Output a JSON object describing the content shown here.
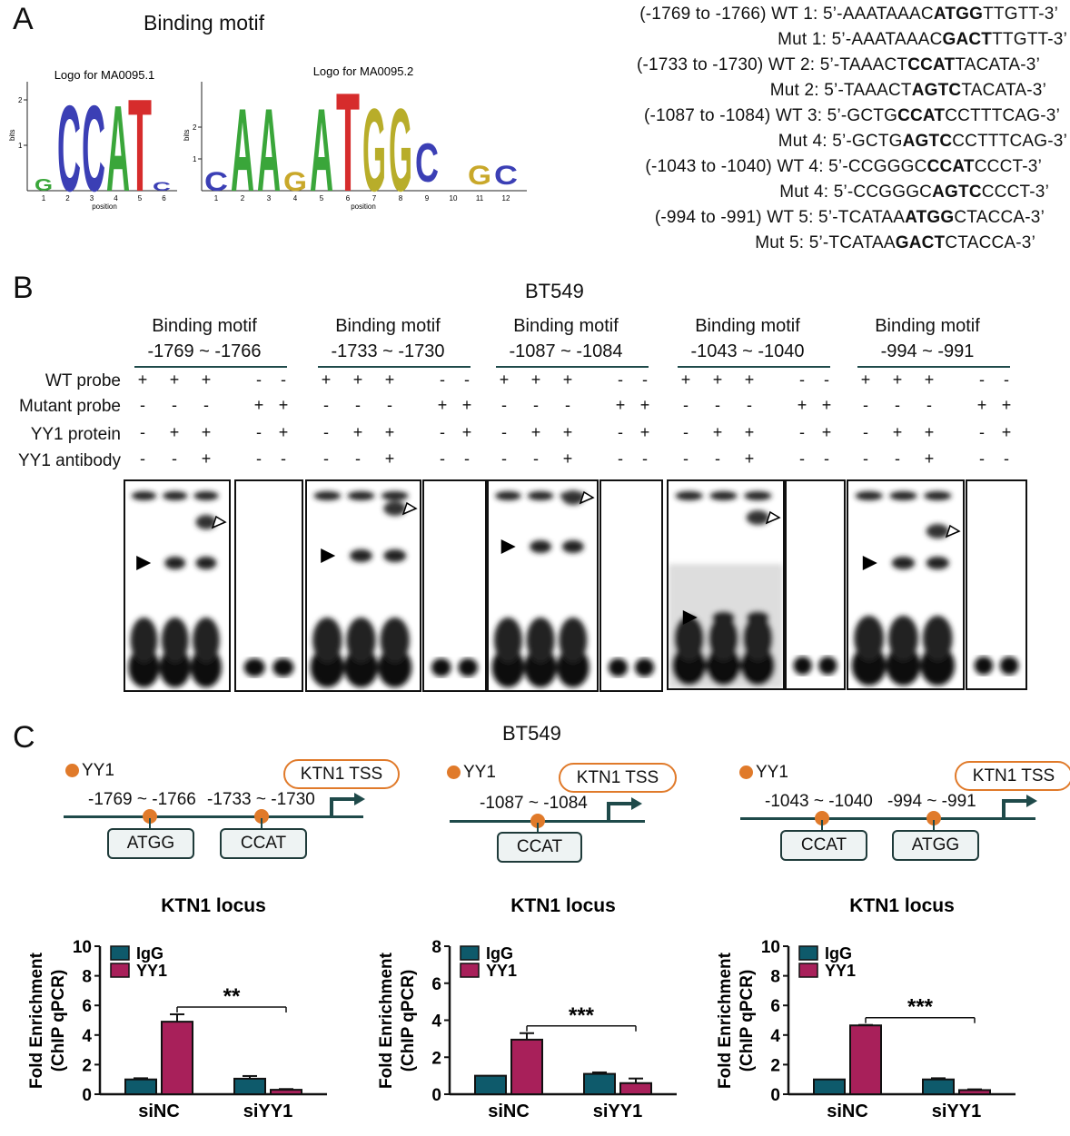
{
  "panelA": {
    "letter": "A",
    "title": "Binding motif",
    "logo1_title": "Logo for MA0095.1",
    "logo2_title": "Logo for MA0095.2",
    "logo_ylabel": "bits",
    "logo_xlabel": "position",
    "logo1_ticks": [
      "1",
      "2",
      "3",
      "4",
      "5",
      "6"
    ],
    "logo2_ticks": [
      "1",
      "2",
      "3",
      "4",
      "5",
      "6",
      "7",
      "8",
      "9",
      "10",
      "11",
      "12"
    ],
    "sequences": [
      {
        "label": "(-1769 to -1766) WT 1: ",
        "pre": "5’-AAATAAAC",
        "core": "ATGG",
        "post": "TTGTT-3’"
      },
      {
        "label": "Mut 1: ",
        "pre": "5’-AAATAAAC",
        "core": "GACT",
        "post": "TTGTT-3’"
      },
      {
        "label": "(-1733 to -1730) WT 2: ",
        "pre": "5’-TAAACT",
        "core": "CCAT",
        "post": "TACATA-3’"
      },
      {
        "label": "Mut 2: ",
        "pre": "5’-TAAACT",
        "core": "AGTC",
        "post": "TACATA-3’"
      },
      {
        "label": "(-1087 to -1084) WT 3: ",
        "pre": "5’-GCTG",
        "core": "CCAT",
        "post": "CCTTTCAG-3’"
      },
      {
        "label": "Mut 4: ",
        "pre": "5’-GCTG",
        "core": "AGTC",
        "post": "CCTTTCAG-3’"
      },
      {
        "label": "(-1043 to -1040) WT 4: ",
        "pre": "5’-CCGGGC",
        "core": "CCAT",
        "post": "CCCT-3’"
      },
      {
        "label": "Mut 4: ",
        "pre": "5’-CCGGGC",
        "core": "AGTC",
        "post": "CCCT-3’"
      },
      {
        "label": "(-994 to -991) WT 5: ",
        "pre": "5’-TCATAA",
        "core": "ATGG",
        "post": "CTACCA-3’"
      },
      {
        "label": "Mut 5: ",
        "pre": "5’-TCATAA",
        "core": "GACT",
        "post": "CTACCA-3’"
      }
    ]
  },
  "panelB": {
    "letter": "B",
    "cell_line": "BT549",
    "row_labels": [
      "WT probe",
      "Mutant probe",
      "YY1 protein",
      "YY1 antibody"
    ],
    "motif_heading": "Binding motif",
    "motifs": [
      "-1769 ~ -1766",
      "-1733 ~ -1730",
      "-1087 ~ -1084",
      "-1043 ~ -1040",
      "-994 ~ -991"
    ],
    "signs": [
      [
        "+",
        "+",
        "+",
        "-",
        "-"
      ],
      [
        "-",
        "-",
        "-",
        "+",
        "+"
      ],
      [
        "-",
        "+",
        "+",
        "-",
        "+"
      ],
      [
        "-",
        "-",
        "+",
        "-",
        "-"
      ]
    ]
  },
  "panelC": {
    "letter": "C",
    "cell_line": "BT549",
    "legend_dot": "YY1",
    "tss_label": "KTN1 TSS",
    "diagrams": [
      {
        "sites": [
          "-1769 ~ -1766",
          "-1733 ~ -1730"
        ],
        "boxes": [
          "ATGG",
          "CCAT"
        ]
      },
      {
        "sites": [
          "-1087 ~ -1084"
        ],
        "boxes": [
          "CCAT"
        ]
      },
      {
        "sites": [
          "-1043 ~ -1040",
          "-994 ~ -991"
        ],
        "boxes": [
          "CCAT",
          "ATGG"
        ]
      }
    ],
    "colors": {
      "igg": "#0e5a6b",
      "yy1": "#a8205a",
      "orange": "#e07a2a",
      "line": "#1f4a4a"
    }
  },
  "chart_data": [
    {
      "type": "bar",
      "title": "KTN1 locus",
      "ylabel": "Fold Enrichment (ChIP qPCR)",
      "ylim": [
        0,
        10
      ],
      "yticks": [
        0,
        2,
        4,
        6,
        8,
        10
      ],
      "categories": [
        "siNC",
        "siYY1"
      ],
      "series": [
        {
          "name": "IgG",
          "values": [
            1.0,
            1.05
          ],
          "errors": [
            0.08,
            0.18
          ]
        },
        {
          "name": "YY1",
          "values": [
            4.9,
            0.3
          ],
          "errors": [
            0.5,
            0.05
          ]
        }
      ],
      "annotation": "**"
    },
    {
      "type": "bar",
      "title": "KTN1 locus",
      "ylabel": "Fold Enrichment (ChIP qPCR)",
      "ylim": [
        0,
        8
      ],
      "yticks": [
        0,
        2,
        4,
        6,
        8
      ],
      "categories": [
        "siNC",
        "siYY1"
      ],
      "series": [
        {
          "name": "IgG",
          "values": [
            1.0,
            1.1
          ],
          "errors": [
            0.0,
            0.08
          ]
        },
        {
          "name": "YY1",
          "values": [
            2.95,
            0.6
          ],
          "errors": [
            0.35,
            0.25
          ]
        }
      ],
      "annotation": "***"
    },
    {
      "type": "bar",
      "title": "KTN1 locus",
      "ylabel": "Fold Enrichment (ChIP qPCR)",
      "ylim": [
        0,
        10
      ],
      "yticks": [
        0,
        2,
        4,
        6,
        8,
        10
      ],
      "categories": [
        "siNC",
        "siYY1"
      ],
      "series": [
        {
          "name": "IgG",
          "values": [
            1.0,
            1.0
          ],
          "errors": [
            0.0,
            0.08
          ]
        },
        {
          "name": "YY1",
          "values": [
            4.65,
            0.28
          ],
          "errors": [
            0.03,
            0.05
          ]
        }
      ],
      "annotation": "***"
    }
  ]
}
